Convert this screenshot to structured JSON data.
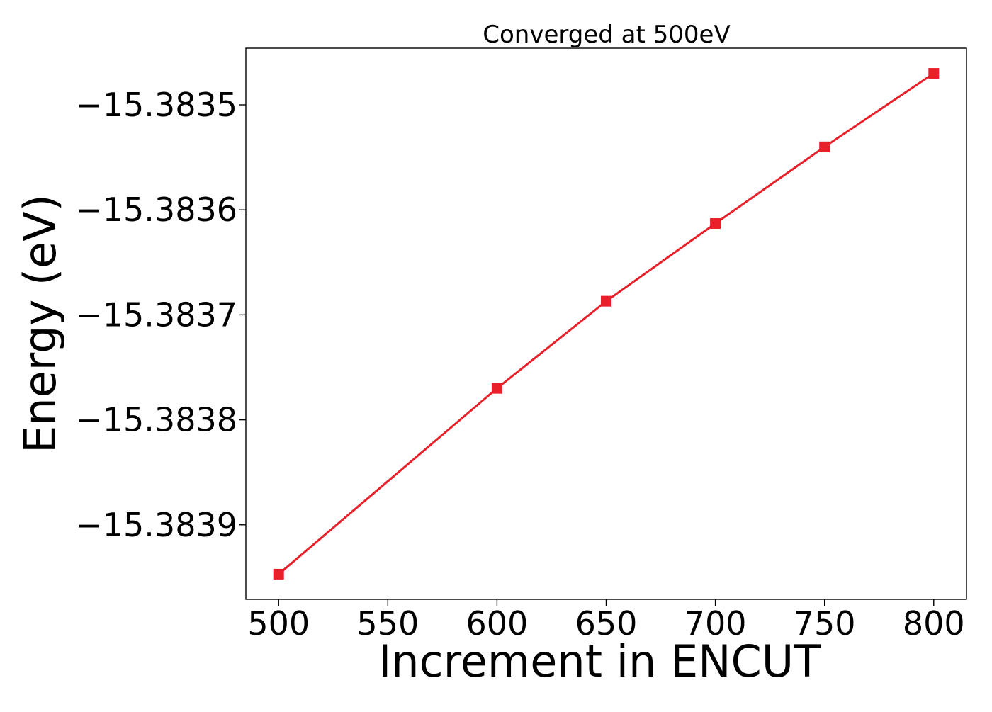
{
  "chart_data": {
    "type": "line",
    "title": "Converged at 500eV",
    "xlabel": "Increment in ENCUT",
    "ylabel": "Energy (eV)",
    "x": [
      500,
      600,
      650,
      700,
      750,
      800
    ],
    "series": [
      {
        "values": [
          -15.383947,
          -15.38377,
          -15.383687,
          -15.383613,
          -15.38354,
          -15.38347
        ],
        "color": "#e8202a",
        "marker": "square"
      }
    ],
    "xticks": [
      500,
      550,
      600,
      650,
      700,
      750,
      800
    ],
    "xtick_labels": [
      "500",
      "550",
      "600",
      "650",
      "700",
      "750",
      "800"
    ],
    "yticks": [
      -15.3835,
      -15.3836,
      -15.3837,
      -15.3838,
      -15.3839
    ],
    "ytick_labels": [
      "−15.3835",
      "−15.3836",
      "−15.3837",
      "−15.3838",
      "−15.3839"
    ],
    "xlim": [
      485,
      815
    ],
    "ylim": [
      -15.383971,
      -15.383446
    ],
    "grid": false,
    "legend": false
  }
}
